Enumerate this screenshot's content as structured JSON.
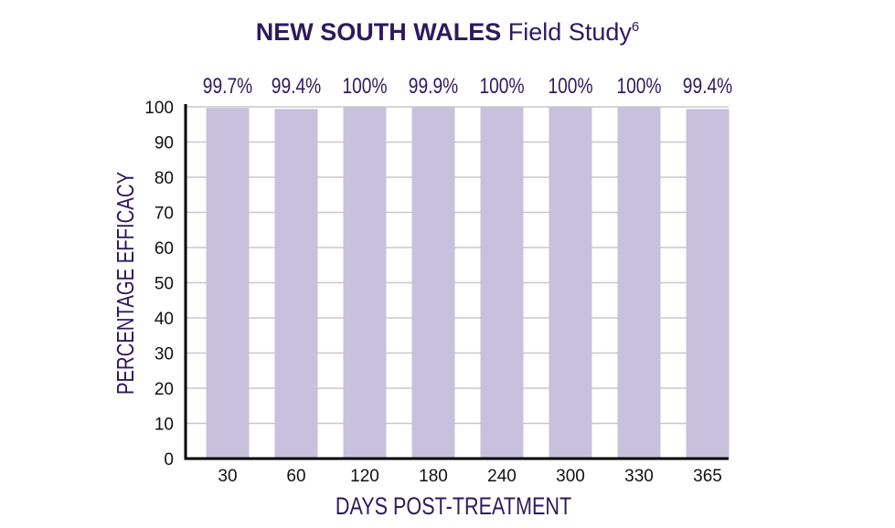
{
  "title": {
    "bold": "NEW SOUTH WALES",
    "light": "Field Study",
    "superscript": "6"
  },
  "colors": {
    "bar": "#c7c1dd",
    "text": "#2d1a5e",
    "grid": "#c8c8c8",
    "axis": "#000000"
  },
  "chart_data": {
    "type": "bar",
    "title": "NEW SOUTH WALES Field Study",
    "xlabel": "DAYS POST-TREATMENT",
    "ylabel": "PERCENTAGE EFFICACY",
    "categories": [
      "30",
      "60",
      "120",
      "180",
      "240",
      "300",
      "330",
      "365"
    ],
    "values": [
      99.7,
      99.4,
      100,
      99.9,
      100,
      100,
      100,
      99.4
    ],
    "data_labels": [
      "99.7%",
      "99.4%",
      "100%",
      "99.9%",
      "100%",
      "100%",
      "100%",
      "99.4%"
    ],
    "yticks": [
      0,
      10,
      20,
      30,
      40,
      50,
      60,
      70,
      80,
      90,
      100
    ],
    "ylim": [
      0,
      100
    ],
    "grid": true
  }
}
